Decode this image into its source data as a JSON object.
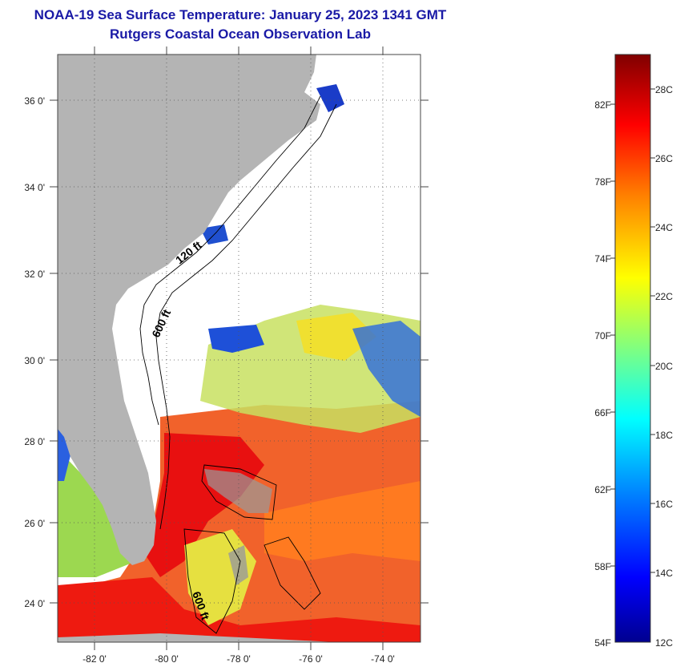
{
  "title": {
    "line1": "NOAA-19 Sea Surface Temperature:  January 25, 2023 1341 GMT",
    "line2": "Rutgers Coastal Ocean Observation Lab"
  },
  "map": {
    "lat_ticks": [
      "36 0'",
      "34 0'",
      "32 0'",
      "30 0'",
      "28 0'",
      "26 0'",
      "24 0'"
    ],
    "lon_ticks": [
      "-82 0'",
      "-80 0'",
      "-78 0'",
      "-76 0'",
      "-74 0'"
    ],
    "contour_labels": [
      "120 ft",
      "600 ft",
      "600 ft"
    ],
    "colors": {
      "land": "#b4b4b4",
      "cloud": "#ffffff",
      "grid": "#555555"
    }
  },
  "colorbar": {
    "fahrenheit_labels": [
      "82F",
      "78F",
      "74F",
      "70F",
      "66F",
      "62F",
      "58F",
      "54F"
    ],
    "celsius_labels": [
      "28C",
      "26C",
      "24C",
      "22C",
      "20C",
      "18C",
      "16C",
      "14C",
      "12C"
    ],
    "min_c": 12,
    "max_c": 29,
    "colors": [
      "#00008f",
      "#0000ff",
      "#0080ff",
      "#00ffff",
      "#80ff80",
      "#ffff00",
      "#ff8000",
      "#ff0000",
      "#800000"
    ]
  }
}
